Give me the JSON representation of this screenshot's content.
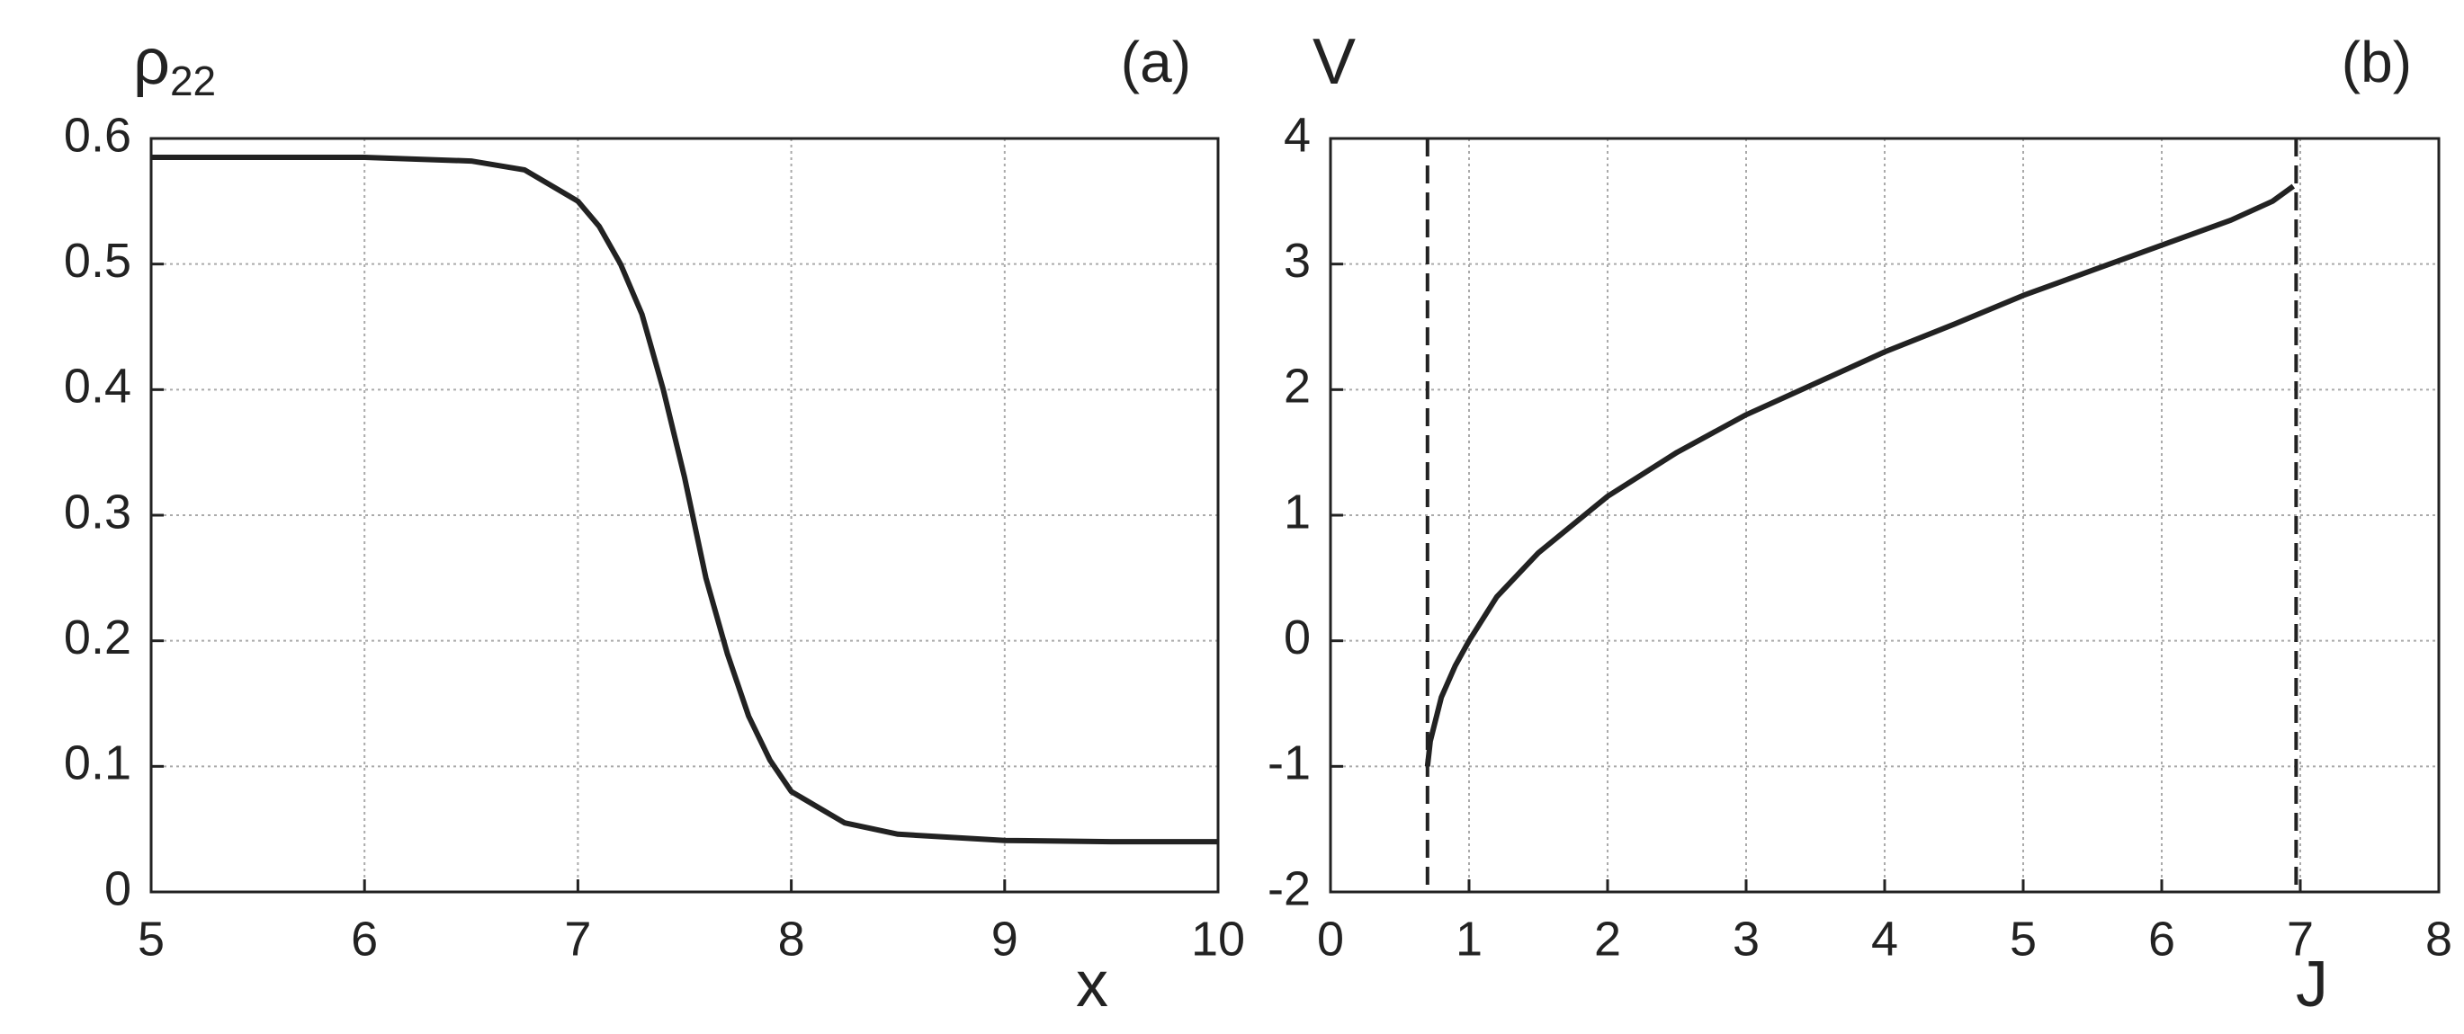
{
  "chart_data": [
    {
      "type": "line",
      "panel_label": "(a)",
      "ylabel": "ρ",
      "ylabel_subscript": "22",
      "xlabel": "x",
      "x": [
        5,
        5.5,
        6,
        6.5,
        6.75,
        7,
        7.1,
        7.2,
        7.3,
        7.4,
        7.5,
        7.6,
        7.7,
        7.8,
        7.9,
        8,
        8.25,
        8.5,
        9,
        9.5,
        10
      ],
      "series": [
        {
          "color": "#222222",
          "values": [
            0.585,
            0.585,
            0.585,
            0.582,
            0.575,
            0.55,
            0.53,
            0.5,
            0.46,
            0.4,
            0.33,
            0.25,
            0.19,
            0.14,
            0.105,
            0.08,
            0.055,
            0.046,
            0.041,
            0.04,
            0.04
          ]
        }
      ],
      "xlim": [
        5,
        10
      ],
      "ylim": [
        0,
        0.6
      ],
      "xticks": [
        5,
        6,
        7,
        8,
        9,
        10
      ],
      "yticks": [
        0,
        0.1,
        0.2,
        0.3,
        0.4,
        0.5,
        0.6
      ],
      "grid": true
    },
    {
      "type": "line",
      "panel_label": "(b)",
      "ylabel": "V",
      "xlabel": "J",
      "x": [
        0.7,
        0.72,
        0.8,
        0.9,
        1,
        1.2,
        1.5,
        2,
        2.5,
        3,
        3.5,
        4,
        4.5,
        5,
        5.5,
        6,
        6.5,
        6.8,
        6.95
      ],
      "series": [
        {
          "color": "#222222",
          "values": [
            -1,
            -0.8,
            -0.45,
            -0.2,
            0,
            0.35,
            0.7,
            1.15,
            1.5,
            1.8,
            2.05,
            2.3,
            2.52,
            2.75,
            2.95,
            3.15,
            3.35,
            3.5,
            3.62
          ]
        }
      ],
      "vlines": [
        0.7,
        6.97
      ],
      "xlim": [
        0,
        8
      ],
      "ylim": [
        -2,
        4
      ],
      "xticks": [
        0,
        1,
        2,
        3,
        4,
        5,
        6,
        7,
        8
      ],
      "yticks": [
        -2,
        -1,
        0,
        1,
        2,
        3,
        4
      ],
      "grid": true
    }
  ]
}
